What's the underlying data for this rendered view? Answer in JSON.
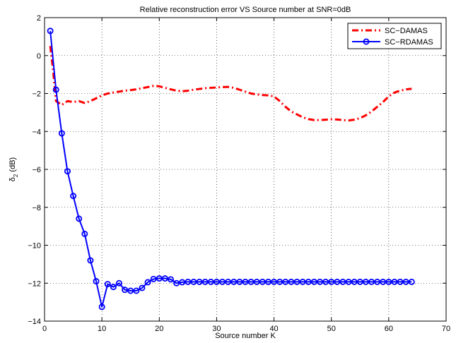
{
  "chart_data": {
    "type": "line",
    "title": "Relative reconstruction error VS Source number at SNR=0dB",
    "xlabel": "Source number K",
    "ylabel_main": "δ",
    "ylabel_sub": "2",
    "ylabel_unit": " (dB)",
    "xlim": [
      0,
      70
    ],
    "ylim": [
      -14,
      2
    ],
    "xticks": [
      0,
      10,
      20,
      30,
      40,
      50,
      60,
      70
    ],
    "yticks": [
      -14,
      -12,
      -10,
      -8,
      -6,
      -4,
      -2,
      0,
      2
    ],
    "grid": true,
    "legend_position": "top-right",
    "series": [
      {
        "name": "SC−DAMAS",
        "color": "#ff0000",
        "style": "dash-dot",
        "marker": "none",
        "x": [
          1,
          1.5,
          2,
          3,
          4,
          5,
          6,
          7,
          8,
          9,
          10,
          11,
          12,
          13,
          14,
          15,
          16,
          17,
          18,
          19,
          20,
          21,
          22,
          23,
          24,
          25,
          26,
          27,
          28,
          29,
          30,
          31,
          32,
          33,
          34,
          35,
          36,
          37,
          38,
          39,
          40,
          41,
          42,
          43,
          44,
          45,
          46,
          47,
          48,
          49,
          50,
          51,
          52,
          53,
          54,
          55,
          56,
          57,
          58,
          59,
          60,
          61,
          62,
          63,
          64
        ],
        "y": [
          0.5,
          -0.8,
          -2.4,
          -2.6,
          -2.4,
          -2.45,
          -2.4,
          -2.5,
          -2.4,
          -2.25,
          -2.1,
          -2.0,
          -1.95,
          -1.9,
          -1.85,
          -1.82,
          -1.78,
          -1.72,
          -1.66,
          -1.6,
          -1.62,
          -1.7,
          -1.78,
          -1.85,
          -1.88,
          -1.85,
          -1.8,
          -1.76,
          -1.72,
          -1.7,
          -1.68,
          -1.66,
          -1.65,
          -1.7,
          -1.8,
          -1.9,
          -2.0,
          -2.05,
          -2.08,
          -2.1,
          -2.15,
          -2.4,
          -2.7,
          -2.95,
          -3.1,
          -3.25,
          -3.35,
          -3.4,
          -3.4,
          -3.38,
          -3.36,
          -3.37,
          -3.4,
          -3.42,
          -3.38,
          -3.3,
          -3.15,
          -2.95,
          -2.7,
          -2.45,
          -2.15,
          -1.95,
          -1.85,
          -1.78,
          -1.75
        ]
      },
      {
        "name": "SC−RDAMAS",
        "color": "#0000ff",
        "style": "solid",
        "marker": "circle",
        "x": [
          1,
          2,
          3,
          4,
          5,
          6,
          7,
          8,
          9,
          10,
          11,
          12,
          13,
          14,
          15,
          16,
          17,
          18,
          19,
          20,
          21,
          22,
          23,
          24,
          25,
          26,
          27,
          28,
          29,
          30,
          31,
          32,
          33,
          34,
          35,
          36,
          37,
          38,
          39,
          40,
          41,
          42,
          43,
          44,
          45,
          46,
          47,
          48,
          49,
          50,
          51,
          52,
          53,
          54,
          55,
          56,
          57,
          58,
          59,
          60,
          61,
          62,
          63,
          64
        ],
        "y": [
          1.3,
          -1.8,
          -4.1,
          -6.1,
          -7.4,
          -8.6,
          -9.4,
          -10.8,
          -11.9,
          -13.25,
          -12.05,
          -12.2,
          -12.0,
          -12.35,
          -12.4,
          -12.4,
          -12.25,
          -11.95,
          -11.78,
          -11.75,
          -11.75,
          -11.8,
          -12.0,
          -11.95,
          -11.93,
          -11.93,
          -11.93,
          -11.93,
          -11.93,
          -11.93,
          -11.93,
          -11.93,
          -11.93,
          -11.93,
          -11.93,
          -11.93,
          -11.93,
          -11.93,
          -11.93,
          -11.93,
          -11.93,
          -11.93,
          -11.93,
          -11.93,
          -11.93,
          -11.93,
          -11.93,
          -11.93,
          -11.93,
          -11.93,
          -11.93,
          -11.93,
          -11.93,
          -11.93,
          -11.93,
          -11.93,
          -11.93,
          -11.93,
          -11.93,
          -11.93,
          -11.93,
          -11.93,
          -11.93,
          -11.93
        ]
      }
    ]
  }
}
